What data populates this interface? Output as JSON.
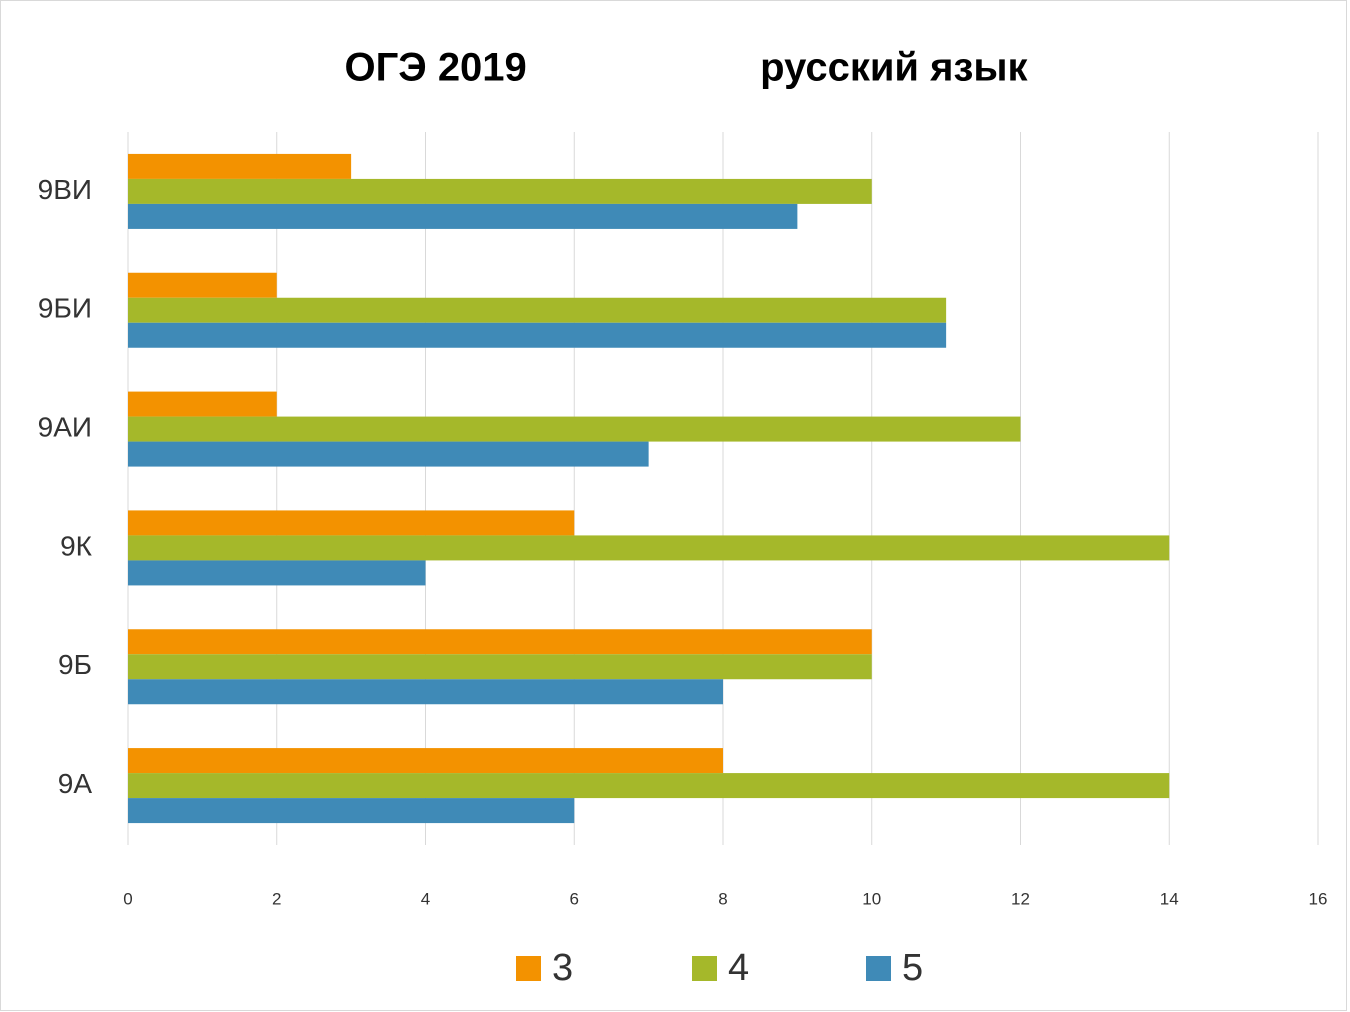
{
  "chart_data": {
    "type": "hbar",
    "title": "ОГЭ 2019                     русский язык",
    "categories": [
      "9А",
      "9Б",
      "9К",
      "9АИ",
      "9БИ",
      "9ВИ"
    ],
    "series": [
      {
        "name": "3",
        "color": "#f39200",
        "values": [
          8,
          10,
          6,
          2,
          2,
          3
        ]
      },
      {
        "name": "4",
        "color": "#a5b82a",
        "values": [
          14,
          10,
          14,
          12,
          11,
          10
        ]
      },
      {
        "name": "5",
        "color": "#3f8ab7",
        "values": [
          6,
          8,
          4,
          7,
          11,
          9
        ]
      }
    ],
    "xlim": [
      0,
      16
    ],
    "xticks": [
      0,
      2,
      4,
      6,
      8,
      10,
      12,
      14,
      16
    ],
    "grid": true,
    "legend": "bottom"
  }
}
